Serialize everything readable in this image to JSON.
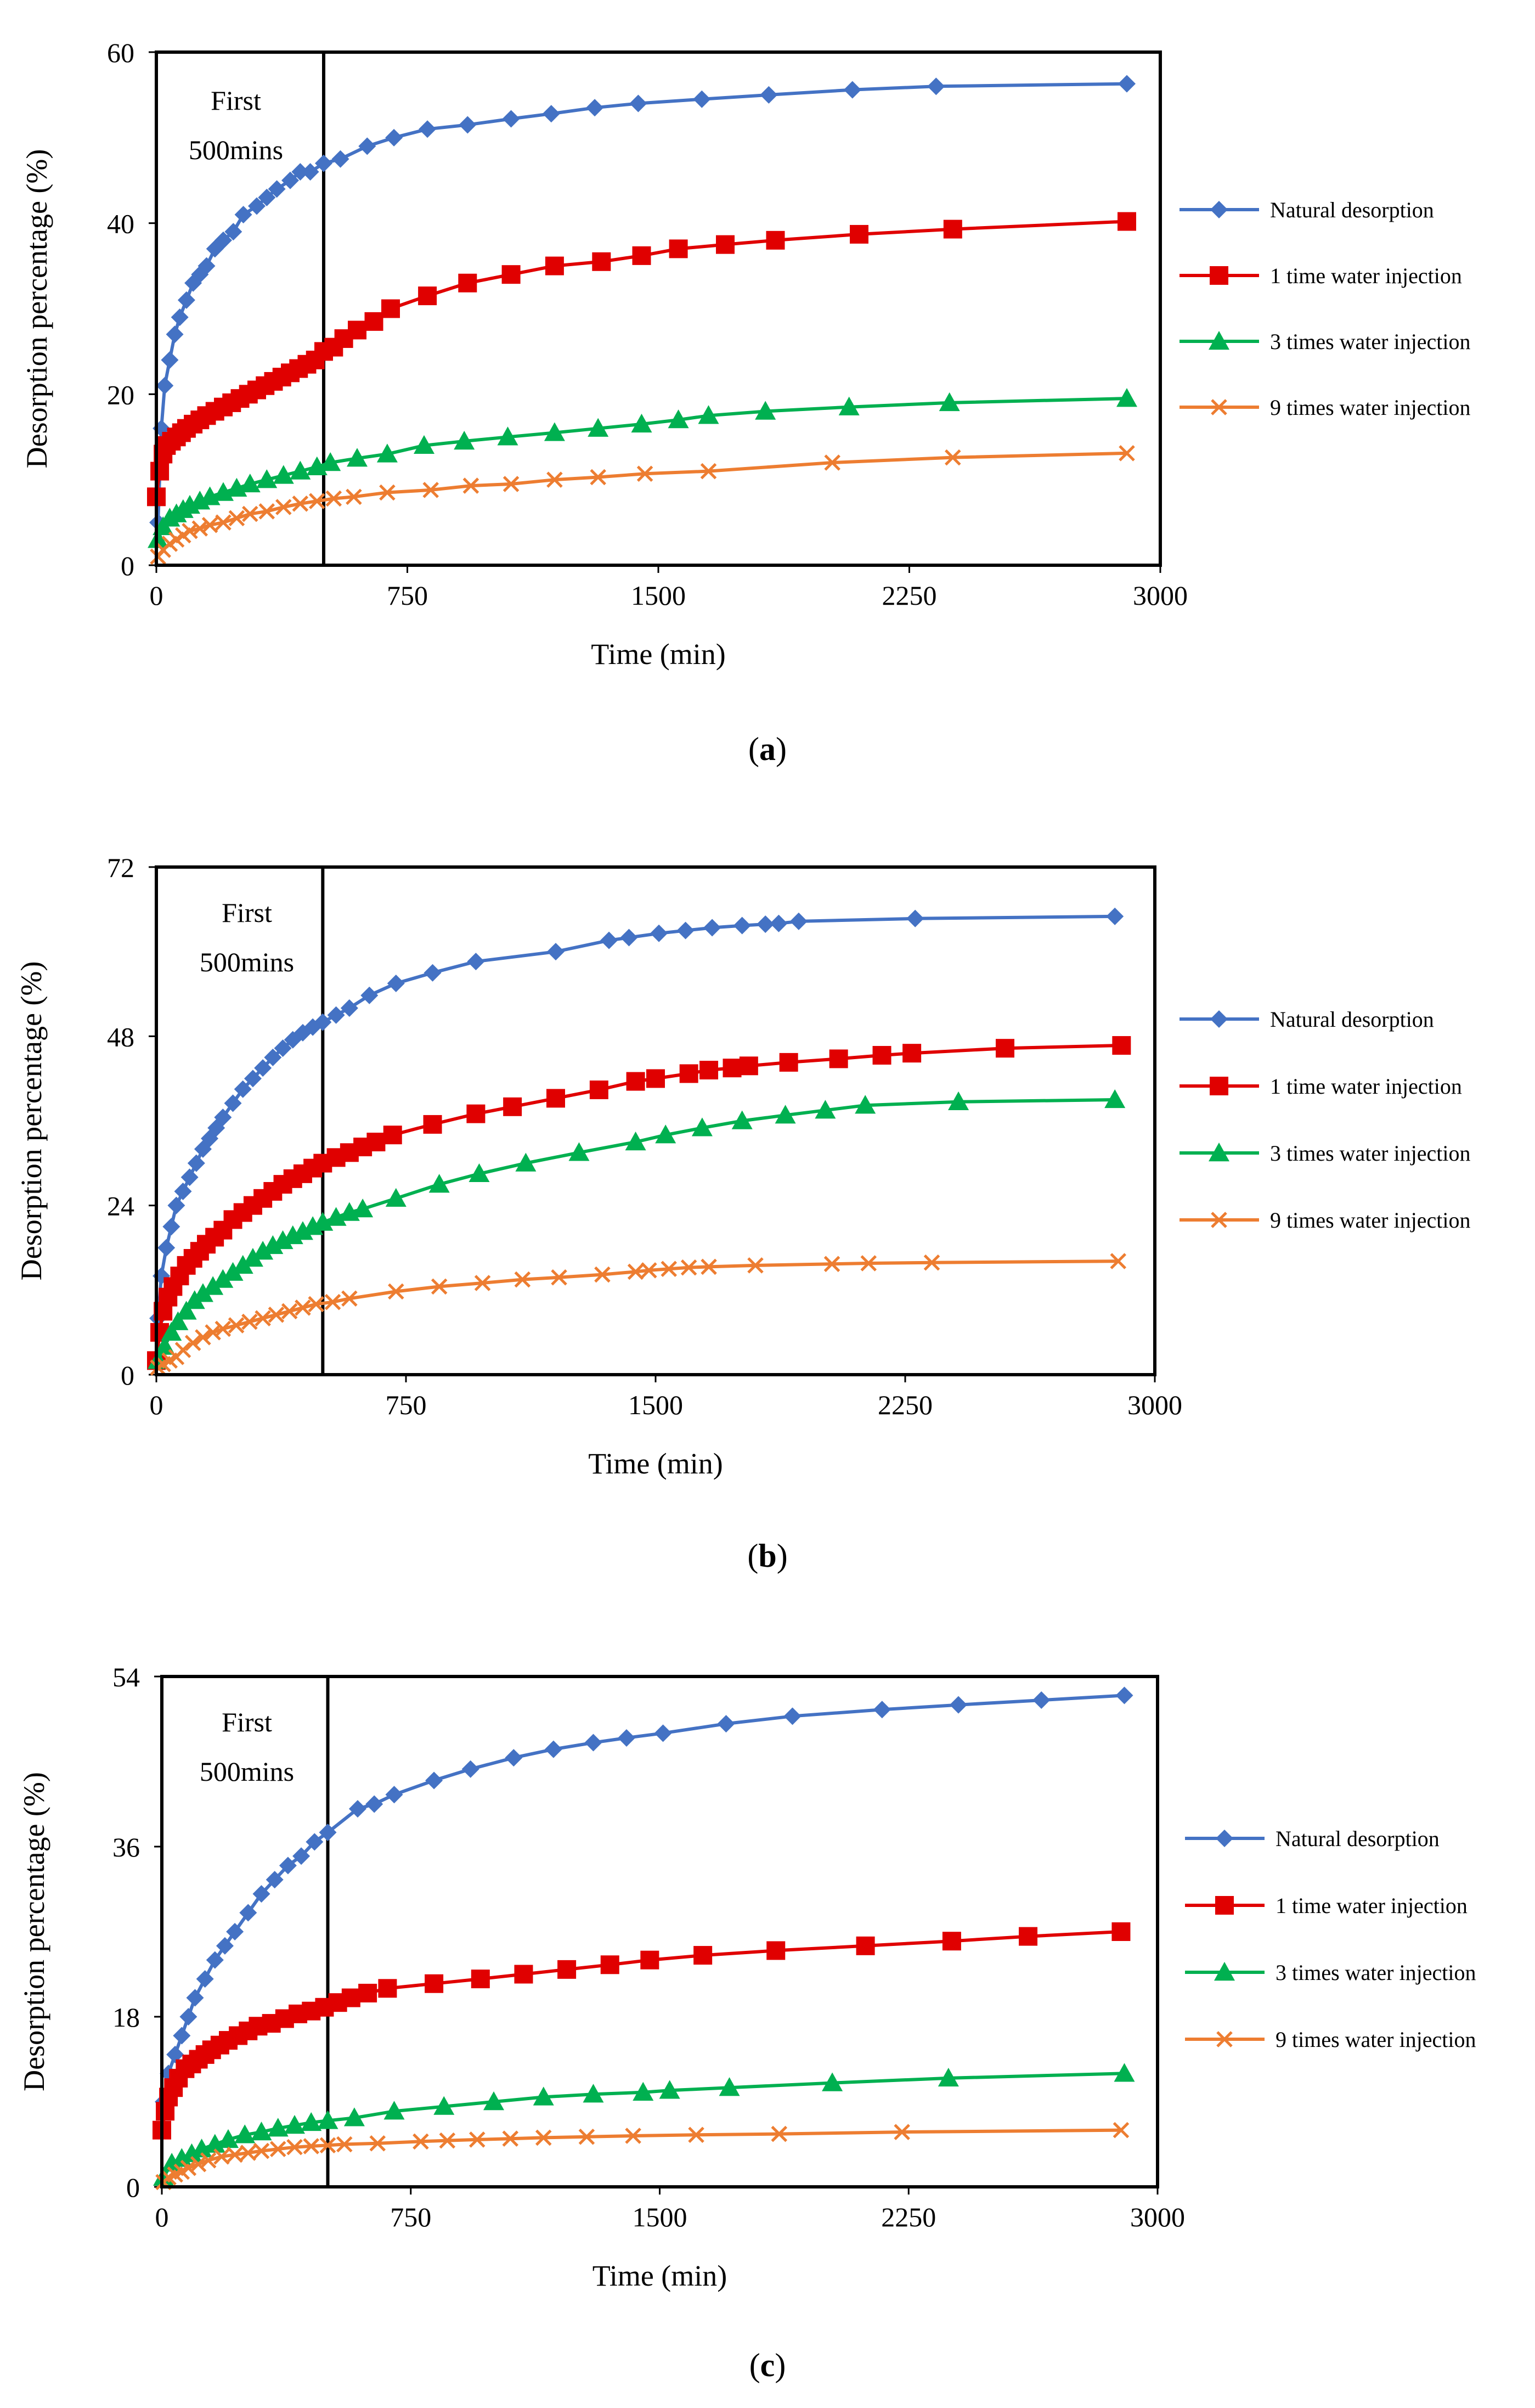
{
  "chart_data": [
    {
      "type": "line",
      "panel_label": "a",
      "xlabel": "Time (min)",
      "ylabel": "Desorption percentage (%)",
      "xlim": [
        0,
        3000
      ],
      "ylim": [
        0,
        60
      ],
      "xticks": [
        0,
        750,
        1500,
        2250,
        3000
      ],
      "yticks": [
        0,
        20,
        40,
        60
      ],
      "tick_labels_x": [
        "0",
        "750",
        "1500",
        "2250",
        "3000"
      ],
      "tick_labels_y": [
        "0",
        "20",
        "40",
        "60"
      ],
      "marker_line_x": 500,
      "annotation": [
        "First",
        "500mins"
      ],
      "legend_position": "right",
      "series": [
        {
          "name": "Natural desorption",
          "color": "#4472C4",
          "marker": "diamond",
          "x": [
            5,
            15,
            25,
            40,
            55,
            70,
            90,
            110,
            130,
            150,
            175,
            200,
            230,
            260,
            300,
            330,
            360,
            400,
            430,
            460,
            500,
            550,
            630,
            710,
            810,
            930,
            1060,
            1180,
            1310,
            1440,
            1630,
            1830,
            2080,
            2330,
            2900
          ],
          "y": [
            5,
            16,
            21,
            24,
            27,
            29,
            31,
            33,
            34,
            35,
            37,
            38,
            39,
            41,
            42,
            43,
            44,
            45,
            46,
            46,
            47,
            47.5,
            49,
            50,
            51,
            51.5,
            52.2,
            52.8,
            53.5,
            54,
            54.5,
            55,
            55.6,
            56,
            56.3
          ]
        },
        {
          "name": "1 time water injection",
          "color": "#E00000",
          "marker": "square",
          "x": [
            0,
            10,
            20,
            30,
            45,
            60,
            75,
            90,
            110,
            130,
            150,
            175,
            200,
            225,
            250,
            275,
            300,
            325,
            350,
            375,
            400,
            425,
            450,
            475,
            500,
            530,
            560,
            600,
            650,
            700,
            810,
            930,
            1060,
            1190,
            1330,
            1450,
            1560,
            1700,
            1850,
            2100,
            2380,
            2900
          ],
          "y": [
            8,
            11,
            13,
            14,
            14.5,
            15,
            15.5,
            16,
            16.5,
            17,
            17.5,
            18,
            18.5,
            19,
            19.5,
            20,
            20.5,
            21,
            21.5,
            22,
            22.5,
            23,
            23.5,
            24,
            25,
            25.5,
            26.5,
            27.5,
            28.5,
            30,
            31.5,
            33,
            34,
            35,
            35.5,
            36.2,
            37,
            37.5,
            38,
            38.7,
            39.3,
            40.2
          ]
        },
        {
          "name": "3 times water injection",
          "color": "#00B050",
          "marker": "triangle",
          "x": [
            5,
            20,
            40,
            60,
            80,
            100,
            130,
            160,
            200,
            240,
            280,
            330,
            380,
            430,
            480,
            520,
            600,
            690,
            800,
            920,
            1050,
            1190,
            1320,
            1450,
            1560,
            1650,
            1820,
            2070,
            2370,
            2900
          ],
          "y": [
            3,
            4.5,
            5.5,
            6,
            6.5,
            7,
            7.5,
            8,
            8.5,
            9,
            9.5,
            10,
            10.5,
            11,
            11.5,
            12,
            12.5,
            13,
            14,
            14.5,
            15,
            15.5,
            16,
            16.5,
            17,
            17.5,
            18,
            18.5,
            19,
            19.5
          ]
        },
        {
          "name": "9 times water injection",
          "color": "#ED7D31",
          "marker": "x",
          "x": [
            5,
            20,
            40,
            60,
            80,
            100,
            130,
            160,
            200,
            240,
            280,
            330,
            380,
            430,
            480,
            530,
            590,
            690,
            820,
            940,
            1060,
            1190,
            1320,
            1460,
            1650,
            2020,
            2380,
            2900
          ],
          "y": [
            1,
            1.8,
            2.5,
            3,
            3.5,
            4,
            4.3,
            4.7,
            5,
            5.5,
            6,
            6.3,
            6.8,
            7.2,
            7.5,
            7.8,
            8,
            8.5,
            8.8,
            9.3,
            9.5,
            10,
            10.3,
            10.7,
            11,
            12,
            12.6,
            13.1
          ]
        }
      ]
    },
    {
      "type": "line",
      "panel_label": "b",
      "xlabel": "Time (min)",
      "ylabel": "Desorption percentage (%)",
      "xlim": [
        0,
        3000
      ],
      "ylim": [
        0,
        72
      ],
      "xticks": [
        0,
        750,
        1500,
        2250,
        3000
      ],
      "yticks": [
        0,
        24,
        48,
        72
      ],
      "tick_labels_x": [
        "0",
        "750",
        "1500",
        "2250",
        "3000"
      ],
      "tick_labels_y": [
        "0",
        "24",
        "48",
        "72"
      ],
      "marker_line_x": 500,
      "annotation": [
        "First",
        "500mins"
      ],
      "legend_position": "right",
      "series": [
        {
          "name": "Natural desorption",
          "color": "#4472C4",
          "marker": "diamond",
          "x": [
            5,
            15,
            30,
            45,
            60,
            80,
            100,
            120,
            140,
            160,
            180,
            200,
            230,
            260,
            290,
            320,
            350,
            380,
            410,
            440,
            470,
            500,
            540,
            580,
            640,
            720,
            830,
            960,
            1200,
            1360,
            1420,
            1510,
            1590,
            1670,
            1760,
            1830,
            1870,
            1930,
            2280,
            2880
          ],
          "y": [
            8,
            14,
            18,
            21,
            24,
            26,
            28,
            30,
            32,
            33.5,
            35,
            36.5,
            38.5,
            40.5,
            42,
            43.5,
            45,
            46.3,
            47.5,
            48.5,
            49.3,
            50,
            51,
            52,
            53.8,
            55.5,
            57,
            58.6,
            60,
            61.6,
            62,
            62.6,
            63,
            63.4,
            63.7,
            63.9,
            64,
            64.3,
            64.7,
            65
          ]
        },
        {
          "name": "1 time water injection",
          "color": "#E00000",
          "marker": "square",
          "x": [
            0,
            10,
            20,
            35,
            50,
            70,
            90,
            110,
            130,
            150,
            175,
            200,
            230,
            260,
            290,
            320,
            350,
            380,
            410,
            440,
            470,
            500,
            540,
            580,
            620,
            660,
            710,
            830,
            960,
            1070,
            1200,
            1330,
            1440,
            1500,
            1600,
            1660,
            1730,
            1780,
            1900,
            2050,
            2180,
            2270,
            2550,
            2900
          ],
          "y": [
            2,
            6,
            9,
            11,
            12.5,
            14,
            15.5,
            16.5,
            17.5,
            18.5,
            19.5,
            20.5,
            22,
            23,
            24,
            25,
            26,
            27,
            27.8,
            28.5,
            29.3,
            30,
            30.8,
            31.5,
            32.3,
            33,
            34,
            35.5,
            37,
            38,
            39.2,
            40.4,
            41.6,
            42,
            42.7,
            43.2,
            43.5,
            43.8,
            44.3,
            44.8,
            45.3,
            45.6,
            46.3,
            46.7
          ]
        },
        {
          "name": "3 times water injection",
          "color": "#00B050",
          "marker": "triangle",
          "x": [
            5,
            25,
            45,
            65,
            90,
            115,
            140,
            170,
            200,
            230,
            260,
            290,
            320,
            350,
            380,
            410,
            440,
            470,
            500,
            540,
            580,
            620,
            720,
            850,
            970,
            1110,
            1270,
            1440,
            1530,
            1640,
            1760,
            1890,
            2010,
            2130,
            2410,
            2880
          ],
          "y": [
            2,
            4,
            6,
            7.5,
            9,
            10.5,
            11.5,
            12.5,
            13.5,
            14.5,
            15.5,
            16.5,
            17.5,
            18.3,
            19,
            19.7,
            20.3,
            21,
            21.6,
            22.3,
            23,
            23.5,
            25,
            27,
            28.5,
            30,
            31.5,
            33,
            34,
            35,
            36,
            36.8,
            37.5,
            38.2,
            38.7,
            39
          ]
        },
        {
          "name": "9 times water injection",
          "color": "#ED7D31",
          "marker": "x",
          "x": [
            5,
            20,
            40,
            60,
            80,
            110,
            140,
            170,
            200,
            240,
            280,
            320,
            360,
            400,
            440,
            480,
            530,
            580,
            720,
            850,
            980,
            1100,
            1210,
            1340,
            1440,
            1480,
            1540,
            1600,
            1660,
            1800,
            2030,
            2140,
            2330,
            2890
          ],
          "y": [
            1,
            1.5,
            2,
            2.5,
            3.5,
            4.5,
            5.3,
            6,
            6.5,
            7,
            7.5,
            8,
            8.5,
            9,
            9.5,
            10,
            10.3,
            10.8,
            11.8,
            12.5,
            13,
            13.5,
            13.8,
            14.2,
            14.6,
            14.8,
            15,
            15.2,
            15.3,
            15.5,
            15.7,
            15.8,
            15.9,
            16.1
          ]
        }
      ]
    },
    {
      "type": "line",
      "panel_label": "c",
      "xlabel": "Time (min)",
      "ylabel": "Desorption percentage (%)",
      "xlim": [
        0,
        3000
      ],
      "ylim": [
        0,
        54
      ],
      "xticks": [
        0,
        750,
        1500,
        2250,
        3000
      ],
      "yticks": [
        0,
        18,
        36,
        54
      ],
      "tick_labels_x": [
        "0",
        "750",
        "1500",
        "2250",
        "3000"
      ],
      "tick_labels_y": [
        "0",
        "18",
        "36",
        "54"
      ],
      "marker_line_x": 500,
      "annotation": [
        "First",
        "500mins"
      ],
      "legend_position": "right",
      "series": [
        {
          "name": "Natural desorption",
          "color": "#4472C4",
          "marker": "diamond",
          "x": [
            5,
            20,
            40,
            60,
            80,
            100,
            130,
            160,
            190,
            220,
            260,
            300,
            340,
            380,
            420,
            460,
            500,
            590,
            640,
            700,
            820,
            930,
            1060,
            1180,
            1300,
            1400,
            1510,
            1700,
            1900,
            2170,
            2400,
            2650,
            2900
          ],
          "y": [
            9,
            12,
            14,
            16,
            18,
            20,
            22,
            24,
            25.5,
            27,
            29,
            31,
            32.5,
            34,
            35,
            36.5,
            37.5,
            40,
            40.5,
            41.5,
            43,
            44.2,
            45.4,
            46.3,
            47,
            47.5,
            48,
            49,
            49.8,
            50.5,
            51,
            51.5,
            52
          ]
        },
        {
          "name": "1 time water injection",
          "color": "#E00000",
          "marker": "square",
          "x": [
            0,
            10,
            20,
            35,
            50,
            70,
            90,
            110,
            130,
            150,
            175,
            200,
            230,
            260,
            290,
            330,
            370,
            410,
            450,
            490,
            530,
            570,
            620,
            680,
            820,
            960,
            1090,
            1220,
            1350,
            1470,
            1630,
            1850,
            2120,
            2380,
            2610,
            2890
          ],
          "y": [
            6,
            8,
            9.5,
            10.5,
            11.5,
            12.5,
            13,
            13.5,
            14,
            14.5,
            15,
            15.5,
            16,
            16.5,
            17,
            17.3,
            17.8,
            18.3,
            18.6,
            19,
            19.5,
            20,
            20.5,
            21,
            21.5,
            22,
            22.5,
            23,
            23.5,
            24,
            24.5,
            25,
            25.5,
            26,
            26.5,
            27
          ]
        },
        {
          "name": "3 times water injection",
          "color": "#00B050",
          "marker": "triangle",
          "x": [
            5,
            30,
            60,
            90,
            120,
            160,
            200,
            250,
            300,
            350,
            400,
            450,
            500,
            580,
            700,
            850,
            1000,
            1150,
            1300,
            1450,
            1530,
            1710,
            2020,
            2370,
            2900
          ],
          "y": [
            1,
            2.5,
            3,
            3.5,
            4,
            4.5,
            5,
            5.5,
            5.8,
            6.2,
            6.5,
            6.8,
            7,
            7.3,
            8,
            8.5,
            9,
            9.5,
            9.8,
            10,
            10.2,
            10.5,
            11,
            11.5,
            12
          ]
        },
        {
          "name": "9 times water injection",
          "color": "#ED7D31",
          "marker": "x",
          "x": [
            5,
            20,
            40,
            60,
            80,
            110,
            140,
            180,
            220,
            260,
            300,
            350,
            400,
            450,
            500,
            550,
            650,
            780,
            860,
            950,
            1050,
            1150,
            1280,
            1420,
            1610,
            1860,
            2230,
            2890
          ],
          "y": [
            0.5,
            1,
            1.3,
            1.6,
            2,
            2.4,
            2.8,
            3.2,
            3.4,
            3.6,
            3.8,
            4,
            4.2,
            4.3,
            4.4,
            4.5,
            4.6,
            4.8,
            4.9,
            5,
            5.1,
            5.2,
            5.3,
            5.4,
            5.5,
            5.6,
            5.8,
            6
          ]
        }
      ]
    }
  ]
}
